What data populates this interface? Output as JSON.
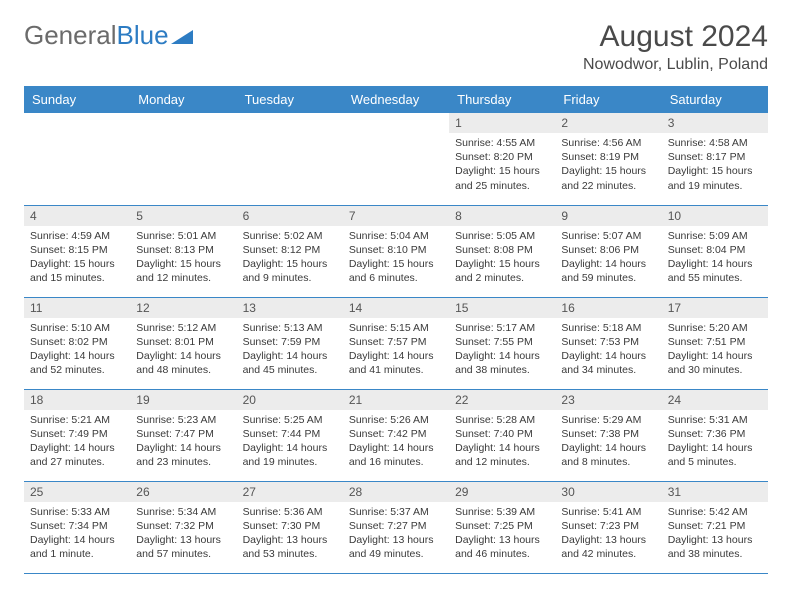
{
  "logo": {
    "text1": "General",
    "text2": "Blue"
  },
  "title": "August 2024",
  "subtitle": "Nowodwor, Lublin, Poland",
  "colors": {
    "header_bg": "#3a87c7",
    "header_text": "#ffffff",
    "daynum_bg": "#ececec",
    "border": "#3a87c7",
    "logo_gray": "#6b6b6b",
    "logo_blue": "#2d7cc3"
  },
  "weekdays": [
    "Sunday",
    "Monday",
    "Tuesday",
    "Wednesday",
    "Thursday",
    "Friday",
    "Saturday"
  ],
  "grid": [
    [
      null,
      null,
      null,
      null,
      {
        "n": "1",
        "sr": "Sunrise: 4:55 AM",
        "ss": "Sunset: 8:20 PM",
        "dl": "Daylight: 15 hours and 25 minutes."
      },
      {
        "n": "2",
        "sr": "Sunrise: 4:56 AM",
        "ss": "Sunset: 8:19 PM",
        "dl": "Daylight: 15 hours and 22 minutes."
      },
      {
        "n": "3",
        "sr": "Sunrise: 4:58 AM",
        "ss": "Sunset: 8:17 PM",
        "dl": "Daylight: 15 hours and 19 minutes."
      }
    ],
    [
      {
        "n": "4",
        "sr": "Sunrise: 4:59 AM",
        "ss": "Sunset: 8:15 PM",
        "dl": "Daylight: 15 hours and 15 minutes."
      },
      {
        "n": "5",
        "sr": "Sunrise: 5:01 AM",
        "ss": "Sunset: 8:13 PM",
        "dl": "Daylight: 15 hours and 12 minutes."
      },
      {
        "n": "6",
        "sr": "Sunrise: 5:02 AM",
        "ss": "Sunset: 8:12 PM",
        "dl": "Daylight: 15 hours and 9 minutes."
      },
      {
        "n": "7",
        "sr": "Sunrise: 5:04 AM",
        "ss": "Sunset: 8:10 PM",
        "dl": "Daylight: 15 hours and 6 minutes."
      },
      {
        "n": "8",
        "sr": "Sunrise: 5:05 AM",
        "ss": "Sunset: 8:08 PM",
        "dl": "Daylight: 15 hours and 2 minutes."
      },
      {
        "n": "9",
        "sr": "Sunrise: 5:07 AM",
        "ss": "Sunset: 8:06 PM",
        "dl": "Daylight: 14 hours and 59 minutes."
      },
      {
        "n": "10",
        "sr": "Sunrise: 5:09 AM",
        "ss": "Sunset: 8:04 PM",
        "dl": "Daylight: 14 hours and 55 minutes."
      }
    ],
    [
      {
        "n": "11",
        "sr": "Sunrise: 5:10 AM",
        "ss": "Sunset: 8:02 PM",
        "dl": "Daylight: 14 hours and 52 minutes."
      },
      {
        "n": "12",
        "sr": "Sunrise: 5:12 AM",
        "ss": "Sunset: 8:01 PM",
        "dl": "Daylight: 14 hours and 48 minutes."
      },
      {
        "n": "13",
        "sr": "Sunrise: 5:13 AM",
        "ss": "Sunset: 7:59 PM",
        "dl": "Daylight: 14 hours and 45 minutes."
      },
      {
        "n": "14",
        "sr": "Sunrise: 5:15 AM",
        "ss": "Sunset: 7:57 PM",
        "dl": "Daylight: 14 hours and 41 minutes."
      },
      {
        "n": "15",
        "sr": "Sunrise: 5:17 AM",
        "ss": "Sunset: 7:55 PM",
        "dl": "Daylight: 14 hours and 38 minutes."
      },
      {
        "n": "16",
        "sr": "Sunrise: 5:18 AM",
        "ss": "Sunset: 7:53 PM",
        "dl": "Daylight: 14 hours and 34 minutes."
      },
      {
        "n": "17",
        "sr": "Sunrise: 5:20 AM",
        "ss": "Sunset: 7:51 PM",
        "dl": "Daylight: 14 hours and 30 minutes."
      }
    ],
    [
      {
        "n": "18",
        "sr": "Sunrise: 5:21 AM",
        "ss": "Sunset: 7:49 PM",
        "dl": "Daylight: 14 hours and 27 minutes."
      },
      {
        "n": "19",
        "sr": "Sunrise: 5:23 AM",
        "ss": "Sunset: 7:47 PM",
        "dl": "Daylight: 14 hours and 23 minutes."
      },
      {
        "n": "20",
        "sr": "Sunrise: 5:25 AM",
        "ss": "Sunset: 7:44 PM",
        "dl": "Daylight: 14 hours and 19 minutes."
      },
      {
        "n": "21",
        "sr": "Sunrise: 5:26 AM",
        "ss": "Sunset: 7:42 PM",
        "dl": "Daylight: 14 hours and 16 minutes."
      },
      {
        "n": "22",
        "sr": "Sunrise: 5:28 AM",
        "ss": "Sunset: 7:40 PM",
        "dl": "Daylight: 14 hours and 12 minutes."
      },
      {
        "n": "23",
        "sr": "Sunrise: 5:29 AM",
        "ss": "Sunset: 7:38 PM",
        "dl": "Daylight: 14 hours and 8 minutes."
      },
      {
        "n": "24",
        "sr": "Sunrise: 5:31 AM",
        "ss": "Sunset: 7:36 PM",
        "dl": "Daylight: 14 hours and 5 minutes."
      }
    ],
    [
      {
        "n": "25",
        "sr": "Sunrise: 5:33 AM",
        "ss": "Sunset: 7:34 PM",
        "dl": "Daylight: 14 hours and 1 minute."
      },
      {
        "n": "26",
        "sr": "Sunrise: 5:34 AM",
        "ss": "Sunset: 7:32 PM",
        "dl": "Daylight: 13 hours and 57 minutes."
      },
      {
        "n": "27",
        "sr": "Sunrise: 5:36 AM",
        "ss": "Sunset: 7:30 PM",
        "dl": "Daylight: 13 hours and 53 minutes."
      },
      {
        "n": "28",
        "sr": "Sunrise: 5:37 AM",
        "ss": "Sunset: 7:27 PM",
        "dl": "Daylight: 13 hours and 49 minutes."
      },
      {
        "n": "29",
        "sr": "Sunrise: 5:39 AM",
        "ss": "Sunset: 7:25 PM",
        "dl": "Daylight: 13 hours and 46 minutes."
      },
      {
        "n": "30",
        "sr": "Sunrise: 5:41 AM",
        "ss": "Sunset: 7:23 PM",
        "dl": "Daylight: 13 hours and 42 minutes."
      },
      {
        "n": "31",
        "sr": "Sunrise: 5:42 AM",
        "ss": "Sunset: 7:21 PM",
        "dl": "Daylight: 13 hours and 38 minutes."
      }
    ]
  ]
}
